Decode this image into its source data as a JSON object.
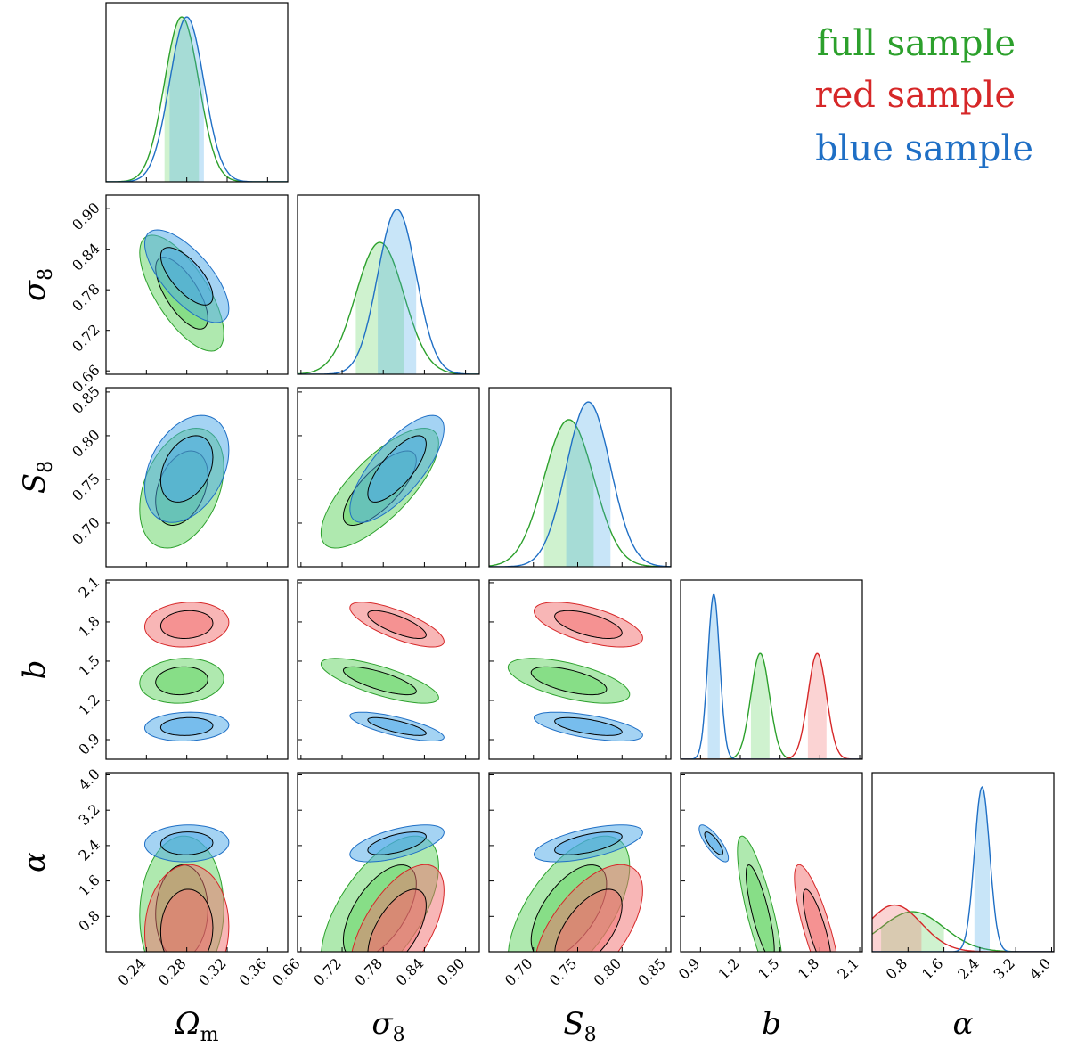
{
  "chart_data": {
    "type": "corner",
    "parameters": [
      {
        "key": "Om",
        "label": "Ω",
        "sub": "m",
        "range": [
          0.2,
          0.38
        ],
        "ticks": [
          0.24,
          0.28,
          0.32,
          0.36
        ],
        "tick_labels": [
          "0.24",
          "0.28",
          "0.32",
          "0.36"
        ]
      },
      {
        "key": "s8",
        "label": "σ",
        "sub": "8",
        "range": [
          0.655,
          0.92
        ],
        "ticks": [
          0.66,
          0.72,
          0.78,
          0.84,
          0.9
        ],
        "tick_labels": [
          "0.66",
          "0.72",
          "0.78",
          "0.84",
          "0.90"
        ]
      },
      {
        "key": "S8",
        "label": "S",
        "sub": "8",
        "range": [
          0.65,
          0.855
        ],
        "ticks": [
          0.7,
          0.75,
          0.8,
          0.85
        ],
        "tick_labels": [
          "0.70",
          "0.75",
          "0.80",
          "0.85"
        ]
      },
      {
        "key": "b",
        "label": "b",
        "sub": "",
        "range": [
          0.75,
          2.12
        ],
        "ticks": [
          0.9,
          1.2,
          1.5,
          1.8,
          2.1
        ],
        "tick_labels": [
          "0.9",
          "1.2",
          "1.5",
          "1.8",
          "2.1"
        ]
      },
      {
        "key": "alpha",
        "label": "α",
        "sub": "",
        "range": [
          0.0,
          4.05
        ],
        "ticks": [
          0.8,
          1.6,
          2.4,
          3.2,
          4.0
        ],
        "tick_labels": [
          "0.8",
          "1.6",
          "2.4",
          "3.2",
          "4.0"
        ]
      }
    ],
    "series": [
      {
        "name": "full sample",
        "color": "#2ca02c",
        "fill": "#5fd35f",
        "means": {
          "Om": 0.275,
          "s8": 0.775,
          "S8": 0.74,
          "b": 1.35,
          "alpha": 0.9
        },
        "sigmas": {
          "Om": 0.017,
          "s8": 0.035,
          "S8": 0.028,
          "b": 0.07,
          "alpha": 0.7
        }
      },
      {
        "name": "red sample",
        "color": "#d62728",
        "fill": "#f26d6d",
        "means": {
          "Om": 0.28,
          "s8": 0.8,
          "S8": 0.762,
          "b": 1.78,
          "alpha": 0.5
        },
        "sigmas": {
          "Om": 0.017,
          "s8": 0.028,
          "S8": 0.025,
          "b": 0.07,
          "alpha": 0.6
        }
      },
      {
        "name": "blue sample",
        "color": "#1f6fc5",
        "fill": "#4aa8e8",
        "means": {
          "Om": 0.28,
          "s8": 0.8,
          "S8": 0.762,
          "b": 1.0,
          "alpha": 2.45
        },
        "sigmas": {
          "Om": 0.017,
          "s8": 0.028,
          "S8": 0.025,
          "b": 0.045,
          "alpha": 0.17
        }
      }
    ],
    "legend_position": "top-right"
  },
  "legend": {
    "full": "full sample",
    "red": "red sample",
    "blue": "blue sample",
    "full_color": "#2ca02c",
    "red_color": "#d62728",
    "blue_color": "#1f6fc5"
  }
}
